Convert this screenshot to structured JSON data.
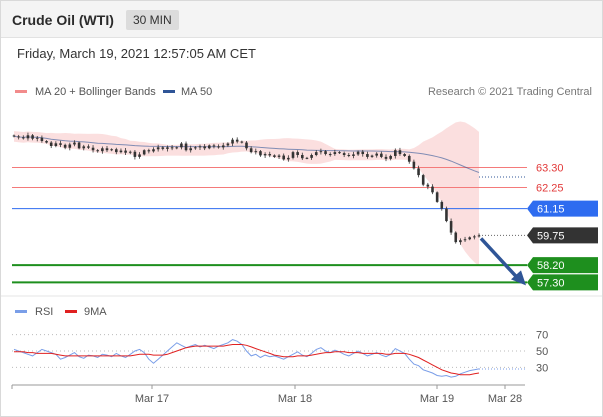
{
  "header": {
    "title": "Crude Oil (WTI)",
    "timeframe": "30 MIN"
  },
  "datetime": "Friday, March 19, 2021 12:57:05 AM CET",
  "credit": "Research © 2021 Trading Central",
  "colors": {
    "bollinger": "#f28b8b",
    "ma50": "#2f5597",
    "resistance": "#f47a7a",
    "pivot": "#2e6cf0",
    "support": "#1e8f1e",
    "current": "#333333",
    "arrow": "#2f5597",
    "rsi": "#7a9ee8",
    "rsi_ma": "#e02020"
  },
  "chart_data": [
    {
      "type": "candlestick",
      "legend": [
        "MA 20 + Bollinger Bands",
        "MA 50"
      ],
      "ylim": [
        56.9,
        66.3
      ],
      "x_ticks": [
        "Mar 17",
        "Mar 18",
        "Mar 19",
        "Mar 28"
      ],
      "close": [
        64.92,
        64.87,
        64.82,
        64.98,
        64.8,
        64.85,
        64.68,
        64.6,
        64.42,
        64.56,
        64.48,
        64.33,
        64.5,
        64.6,
        64.3,
        64.4,
        64.33,
        64.2,
        64.15,
        64.3,
        64.2,
        64.25,
        64.1,
        64.18,
        64.07,
        64.12,
        63.85,
        63.98,
        64.2,
        64.14,
        64.25,
        64.35,
        64.27,
        64.35,
        64.3,
        64.35,
        64.55,
        64.2,
        64.3,
        64.35,
        64.4,
        64.3,
        64.45,
        64.4,
        64.35,
        64.45,
        64.55,
        64.75,
        64.65,
        64.6,
        64.3,
        64.1,
        64.15,
        63.93,
        64.0,
        63.93,
        63.85,
        63.92,
        63.72,
        63.8,
        64.1,
        63.95,
        63.78,
        63.8,
        63.95,
        64.1,
        64.15,
        64.0,
        64.0,
        64.1,
        64.05,
        63.95,
        63.9,
        63.98,
        64.12,
        64.0,
        63.85,
        63.92,
        64.02,
        63.85,
        63.75,
        63.9,
        64.2,
        64.0,
        63.9,
        63.6,
        63.25,
        62.9,
        62.4,
        62.3,
        62.0,
        61.5,
        61.15,
        60.5,
        59.9,
        59.4,
        59.5,
        59.55,
        59.65,
        59.7,
        59.75
      ],
      "levels": [
        {
          "value": 63.3,
          "label": "63.30",
          "kind": "resistance"
        },
        {
          "value": 62.25,
          "label": "62.25",
          "kind": "resistance"
        },
        {
          "value": 61.15,
          "label": "61.15",
          "kind": "pivot"
        },
        {
          "value": 59.75,
          "label": "59.75",
          "kind": "current"
        },
        {
          "value": 58.2,
          "label": "58.20",
          "kind": "support"
        },
        {
          "value": 57.3,
          "label": "57.30",
          "kind": "support"
        }
      ],
      "ma50_end": 62.8,
      "projection": {
        "from": 59.75,
        "to": 57.3
      }
    },
    {
      "type": "line",
      "legend": [
        "RSI",
        "9MA"
      ],
      "ylim": [
        12,
        88
      ],
      "y_ticks": [
        70,
        50,
        30
      ],
      "rsi": [
        52,
        50,
        48,
        46,
        44,
        48,
        52,
        50,
        48,
        46,
        40,
        42,
        45,
        48,
        43,
        41,
        45,
        44,
        42,
        46,
        45,
        43,
        47,
        44,
        42,
        46,
        50,
        52,
        48,
        40,
        35,
        40,
        45,
        50,
        55,
        60,
        57,
        54,
        56,
        58,
        55,
        57,
        55,
        53,
        56,
        58,
        60,
        64,
        62,
        58,
        50,
        44,
        46,
        42,
        45,
        43,
        44,
        42,
        40,
        43,
        46,
        49,
        45,
        43,
        47,
        52,
        54,
        50,
        48,
        51,
        49,
        46,
        44,
        47,
        50,
        47,
        44,
        46,
        48,
        45,
        43,
        46,
        53,
        50,
        47,
        40,
        34,
        32,
        27,
        25,
        23,
        20,
        19,
        20,
        18,
        19,
        22,
        24,
        26,
        27,
        28
      ],
      "rsi_ma": [
        49,
        49,
        49,
        48,
        48,
        47,
        47,
        47,
        47,
        46,
        45,
        44,
        44,
        44,
        44,
        44,
        44,
        44,
        44,
        44,
        44,
        44,
        44,
        44,
        44,
        44,
        45,
        46,
        46,
        46,
        45,
        45,
        45,
        46,
        48,
        50,
        52,
        54,
        55,
        56,
        56,
        56,
        56,
        56,
        56,
        56,
        57,
        58,
        58,
        58,
        57,
        55,
        53,
        51,
        49,
        47,
        45,
        44,
        43,
        43,
        43,
        44,
        44,
        44,
        45,
        46,
        47,
        48,
        48,
        49,
        49,
        49,
        48,
        48,
        48,
        47,
        47,
        47,
        47,
        47,
        46,
        46,
        47,
        47,
        47,
        46,
        44,
        42,
        39,
        36,
        33,
        30,
        27,
        25,
        23,
        22,
        21,
        21,
        21,
        22,
        23
      ]
    }
  ]
}
